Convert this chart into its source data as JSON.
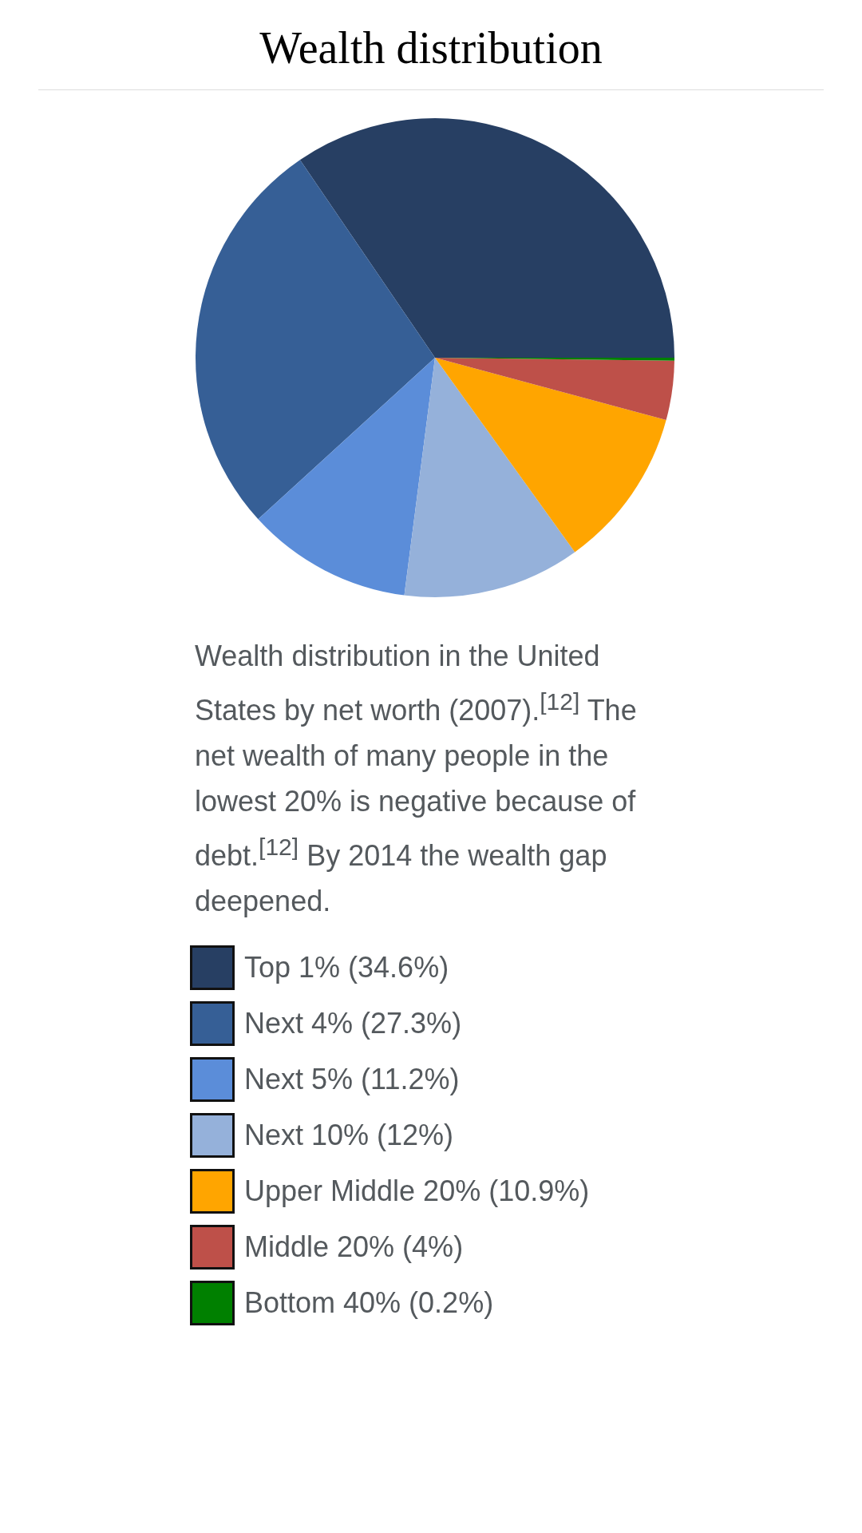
{
  "chart_data": {
    "type": "pie",
    "title": "Wealth distribution",
    "categories": [
      "Top 1%",
      "Next 4%",
      "Next 5%",
      "Next 10%",
      "Upper Middle 20%",
      "Middle 20%",
      "Bottom 40%"
    ],
    "values": [
      34.6,
      27.3,
      11.2,
      12,
      10.9,
      4,
      0.2
    ],
    "value_labels": [
      "(34.6%)",
      "(27.3%)",
      "(11.2%)",
      "(12%)",
      "(10.9%)",
      "(4%)",
      "(0.2%)"
    ],
    "colors": [
      "#273f63",
      "#365f96",
      "#5b8dd9",
      "#95b1da",
      "#ffa500",
      "#be5049",
      "#008000"
    ],
    "legend": "bottom",
    "annotations": [
      "Wealth distribution in the United States by net worth (2007).$^{[12]}$ The net wealth of many people in the lowest 20% is negative because of debt.$^{[12]}$ By 2014 the wealth gap deepened."
    ]
  }
}
